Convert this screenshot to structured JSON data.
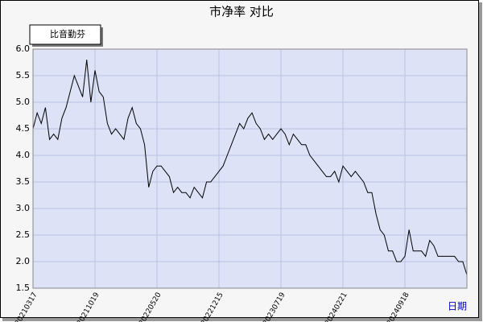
{
  "chart_data": {
    "type": "line",
    "title": "市净率  对比",
    "x_label": "日期",
    "series": [
      {
        "name": "比音勤芬",
        "color": "#000000",
        "values": [
          4.5,
          4.8,
          4.6,
          4.9,
          4.3,
          4.4,
          4.3,
          4.7,
          4.9,
          5.2,
          5.5,
          5.3,
          5.1,
          5.8,
          5.0,
          5.6,
          5.2,
          5.1,
          4.6,
          4.4,
          4.5,
          4.4,
          4.3,
          4.7,
          4.9,
          4.6,
          4.5,
          4.2,
          3.4,
          3.7,
          3.8,
          3.8,
          3.7,
          3.6,
          3.3,
          3.4,
          3.3,
          3.3,
          3.2,
          3.4,
          3.3,
          3.2,
          3.5,
          3.5,
          3.6,
          3.7,
          3.8,
          4.0,
          4.2,
          4.4,
          4.6,
          4.5,
          4.7,
          4.8,
          4.6,
          4.5,
          4.3,
          4.4,
          4.3,
          4.4,
          4.5,
          4.4,
          4.2,
          4.4,
          4.3,
          4.2,
          4.2,
          4.0,
          3.9,
          3.8,
          3.7,
          3.6,
          3.6,
          3.7,
          3.5,
          3.8,
          3.7,
          3.6,
          3.7,
          3.6,
          3.5,
          3.3,
          3.3,
          2.9,
          2.6,
          2.5,
          2.2,
          2.2,
          2.0,
          2.0,
          2.1,
          2.6,
          2.2,
          2.2,
          2.2,
          2.1,
          2.4,
          2.3,
          2.1,
          2.1,
          2.1,
          2.1,
          2.1,
          2.0,
          2.0,
          1.75
        ]
      }
    ],
    "xlim": [
      0,
      105
    ],
    "xticks": [
      {
        "value": 0,
        "label": "20210317"
      },
      {
        "value": 15,
        "label": "20211019"
      },
      {
        "value": 30,
        "label": "20220520"
      },
      {
        "value": 45,
        "label": "20221215"
      },
      {
        "value": 60,
        "label": "20230719"
      },
      {
        "value": 75,
        "label": "20240221"
      },
      {
        "value": 90,
        "label": "20240918"
      }
    ],
    "ylim": [
      1.5,
      6.0
    ],
    "yticks": [
      1.5,
      {
        "value": 2,
        "label": "2.0"
      },
      2.5,
      {
        "value": 3,
        "label": "3.0"
      },
      3.5,
      {
        "value": 4,
        "label": "4.0"
      },
      4.5,
      {
        "value": 5,
        "label": "5.0"
      },
      5.5,
      {
        "value": 6,
        "label": "6.0"
      }
    ],
    "grid": true,
    "legend": "top-left"
  }
}
